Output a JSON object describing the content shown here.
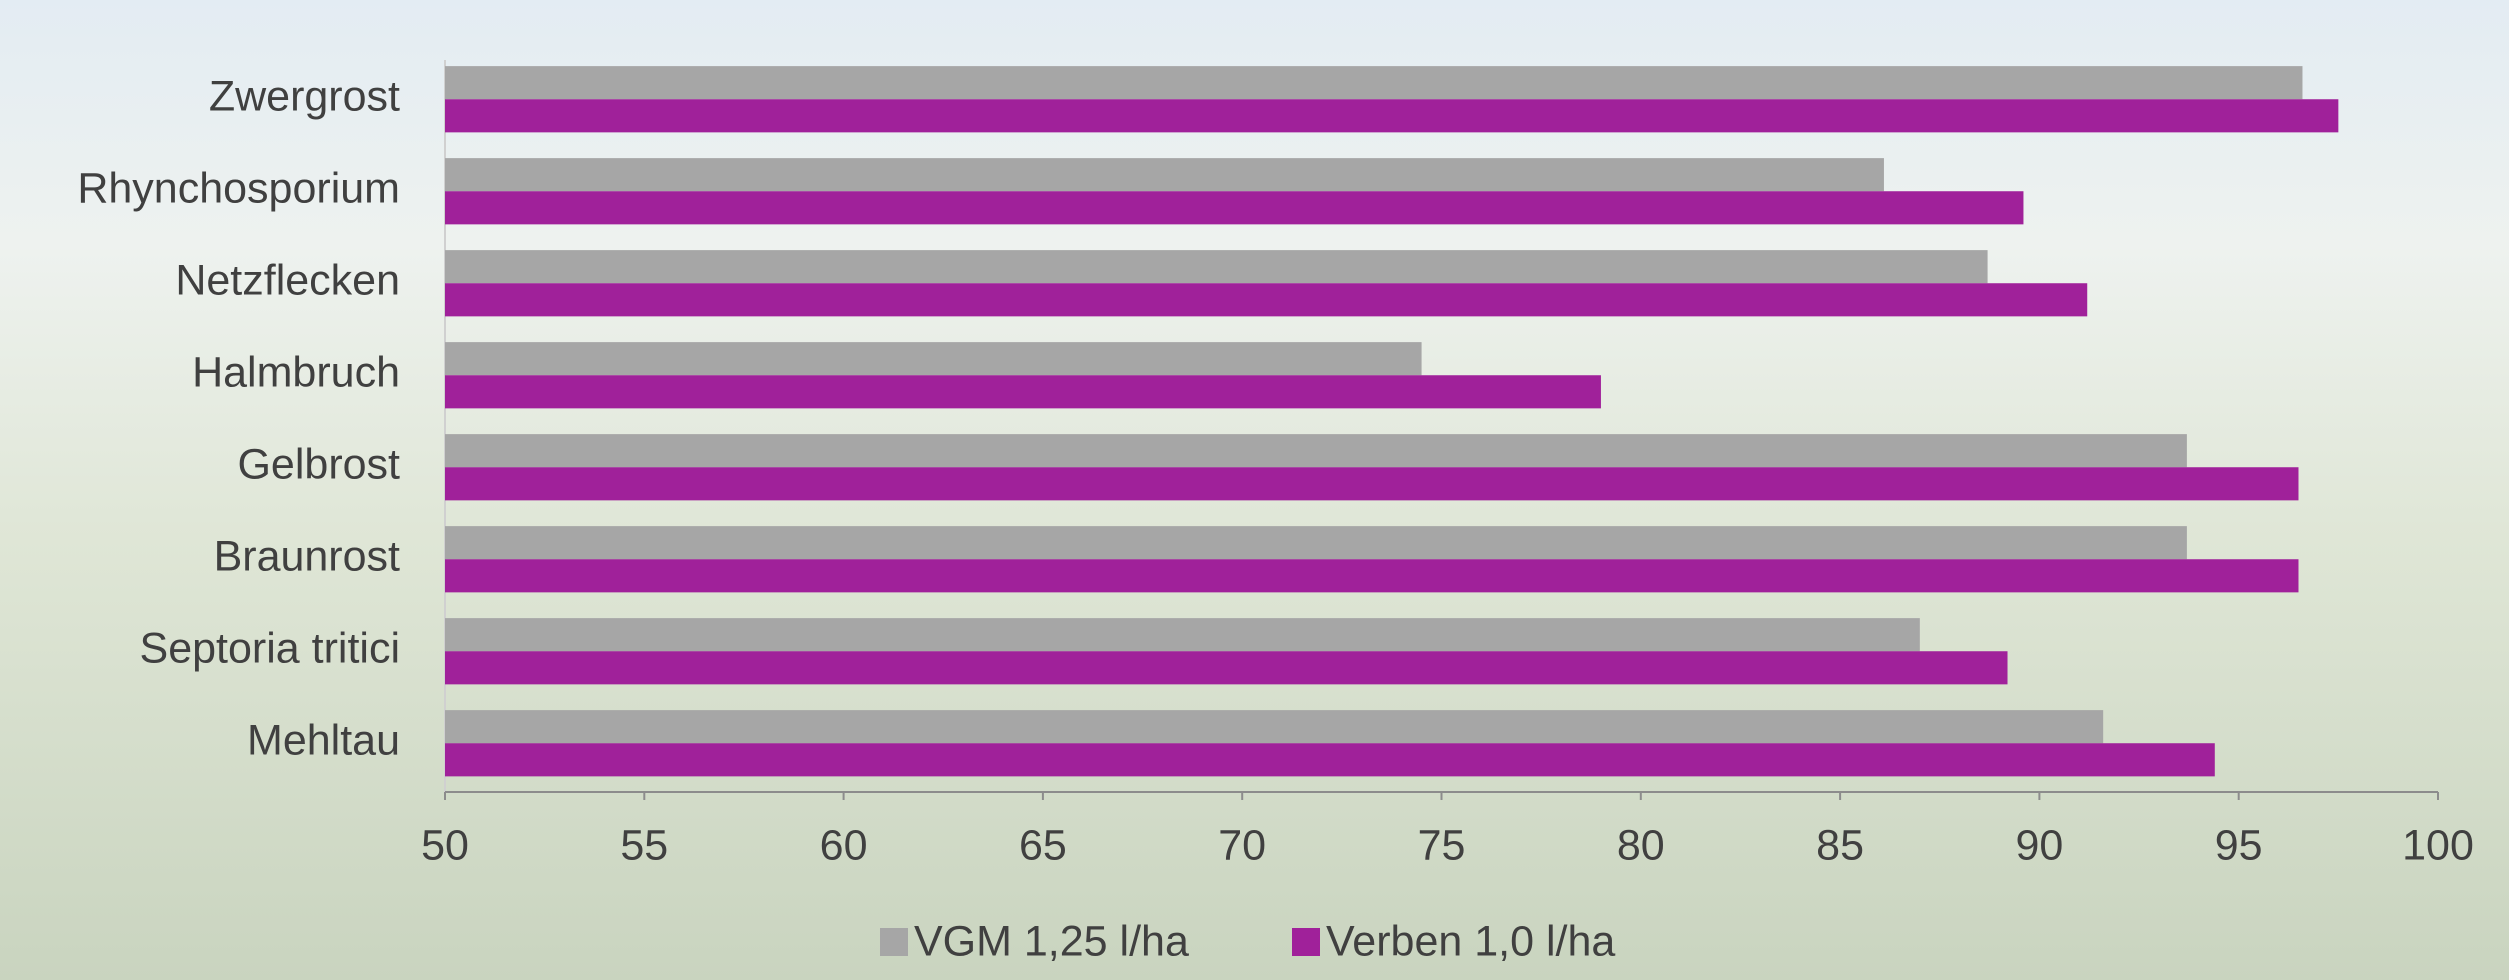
{
  "chart_data": {
    "type": "bar",
    "orientation": "horizontal",
    "categories": [
      "Zwergrost",
      "Rhynchosporium",
      "Netzflecken",
      "Halmbruch",
      "Gelbrost",
      "Braunrost",
      "Septoria tritici",
      "Mehltau"
    ],
    "series": [
      {
        "name": "VGM 1,25 l/ha",
        "color": "#a6a6a6",
        "values": [
          96.6,
          86.1,
          88.7,
          74.5,
          93.7,
          93.7,
          87.0,
          91.6
        ]
      },
      {
        "name": "Verben 1,0 l/ha",
        "color": "#a0219a",
        "values": [
          97.5,
          89.6,
          91.2,
          79.0,
          96.5,
          96.5,
          89.2,
          94.4
        ]
      }
    ],
    "xlim": [
      50,
      100
    ],
    "xticks": [
      50,
      55,
      60,
      65,
      70,
      75,
      80,
      85,
      90,
      95,
      100
    ],
    "grid": false,
    "legend": "bottom"
  }
}
